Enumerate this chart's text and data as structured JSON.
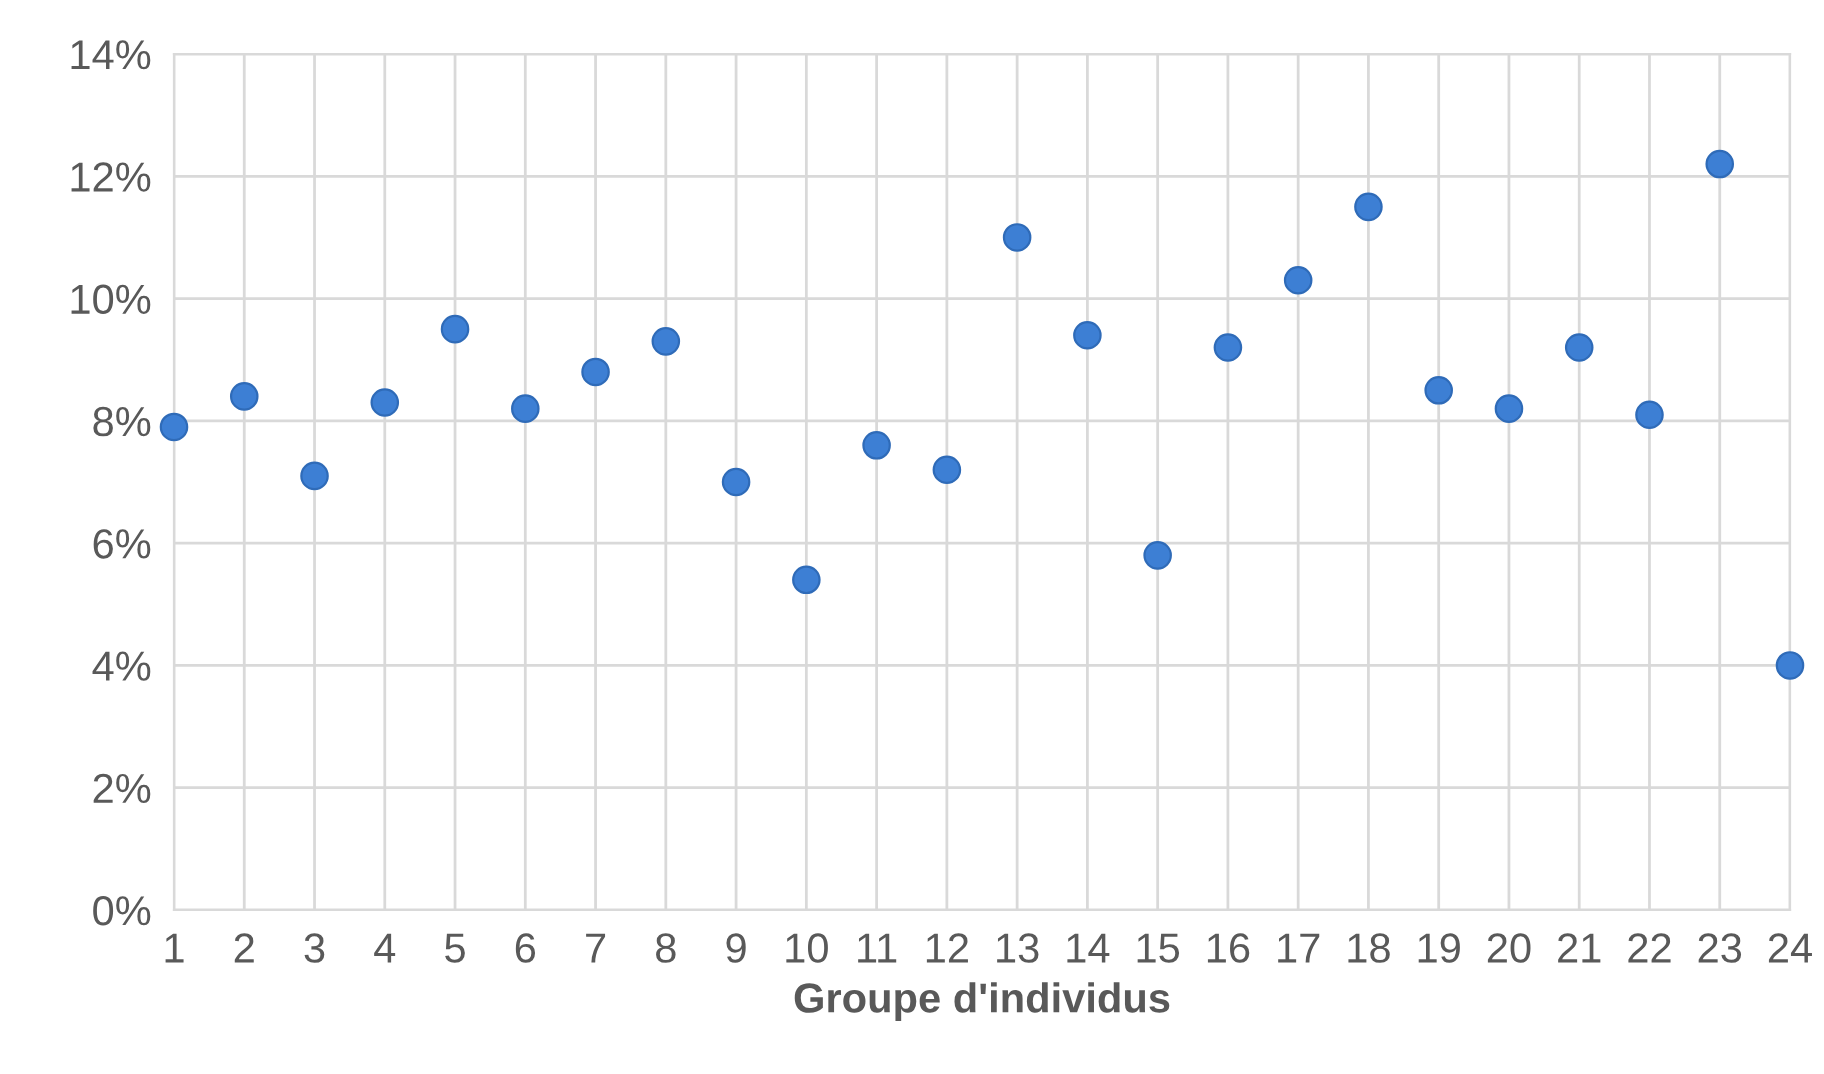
{
  "chart_data": {
    "type": "scatter",
    "xlabel": "Groupe d'individus",
    "x": [
      1,
      2,
      3,
      4,
      5,
      6,
      7,
      8,
      9,
      10,
      11,
      12,
      13,
      14,
      15,
      16,
      17,
      18,
      19,
      20,
      21,
      22,
      23,
      24
    ],
    "series": [
      {
        "color": "#3d7fd4",
        "values": [
          7.9,
          8.4,
          7.1,
          8.3,
          9.5,
          8.2,
          8.8,
          9.3,
          7.0,
          5.4,
          7.6,
          7.2,
          11.0,
          9.4,
          5.8,
          9.2,
          10.3,
          11.5,
          8.5,
          8.2,
          9.2,
          8.1,
          12.2,
          4.0
        ]
      }
    ],
    "xlim": [
      1,
      24
    ],
    "xticks": [
      1,
      2,
      3,
      4,
      5,
      6,
      7,
      8,
      9,
      10,
      11,
      12,
      13,
      14,
      15,
      16,
      17,
      18,
      19,
      20,
      21,
      22,
      23,
      24
    ],
    "ylim": [
      0,
      14
    ],
    "yticks": [
      {
        "value": 0,
        "label": "0%"
      },
      {
        "value": 2,
        "label": "2%"
      },
      {
        "value": 4,
        "label": "4%"
      },
      {
        "value": 6,
        "label": "6%"
      },
      {
        "value": 8,
        "label": "8%"
      },
      {
        "value": 10,
        "label": "10%"
      },
      {
        "value": 12,
        "label": "12%"
      },
      {
        "value": 14,
        "label": "14%"
      }
    ],
    "grid": true,
    "marker": "circle",
    "legend": false
  }
}
